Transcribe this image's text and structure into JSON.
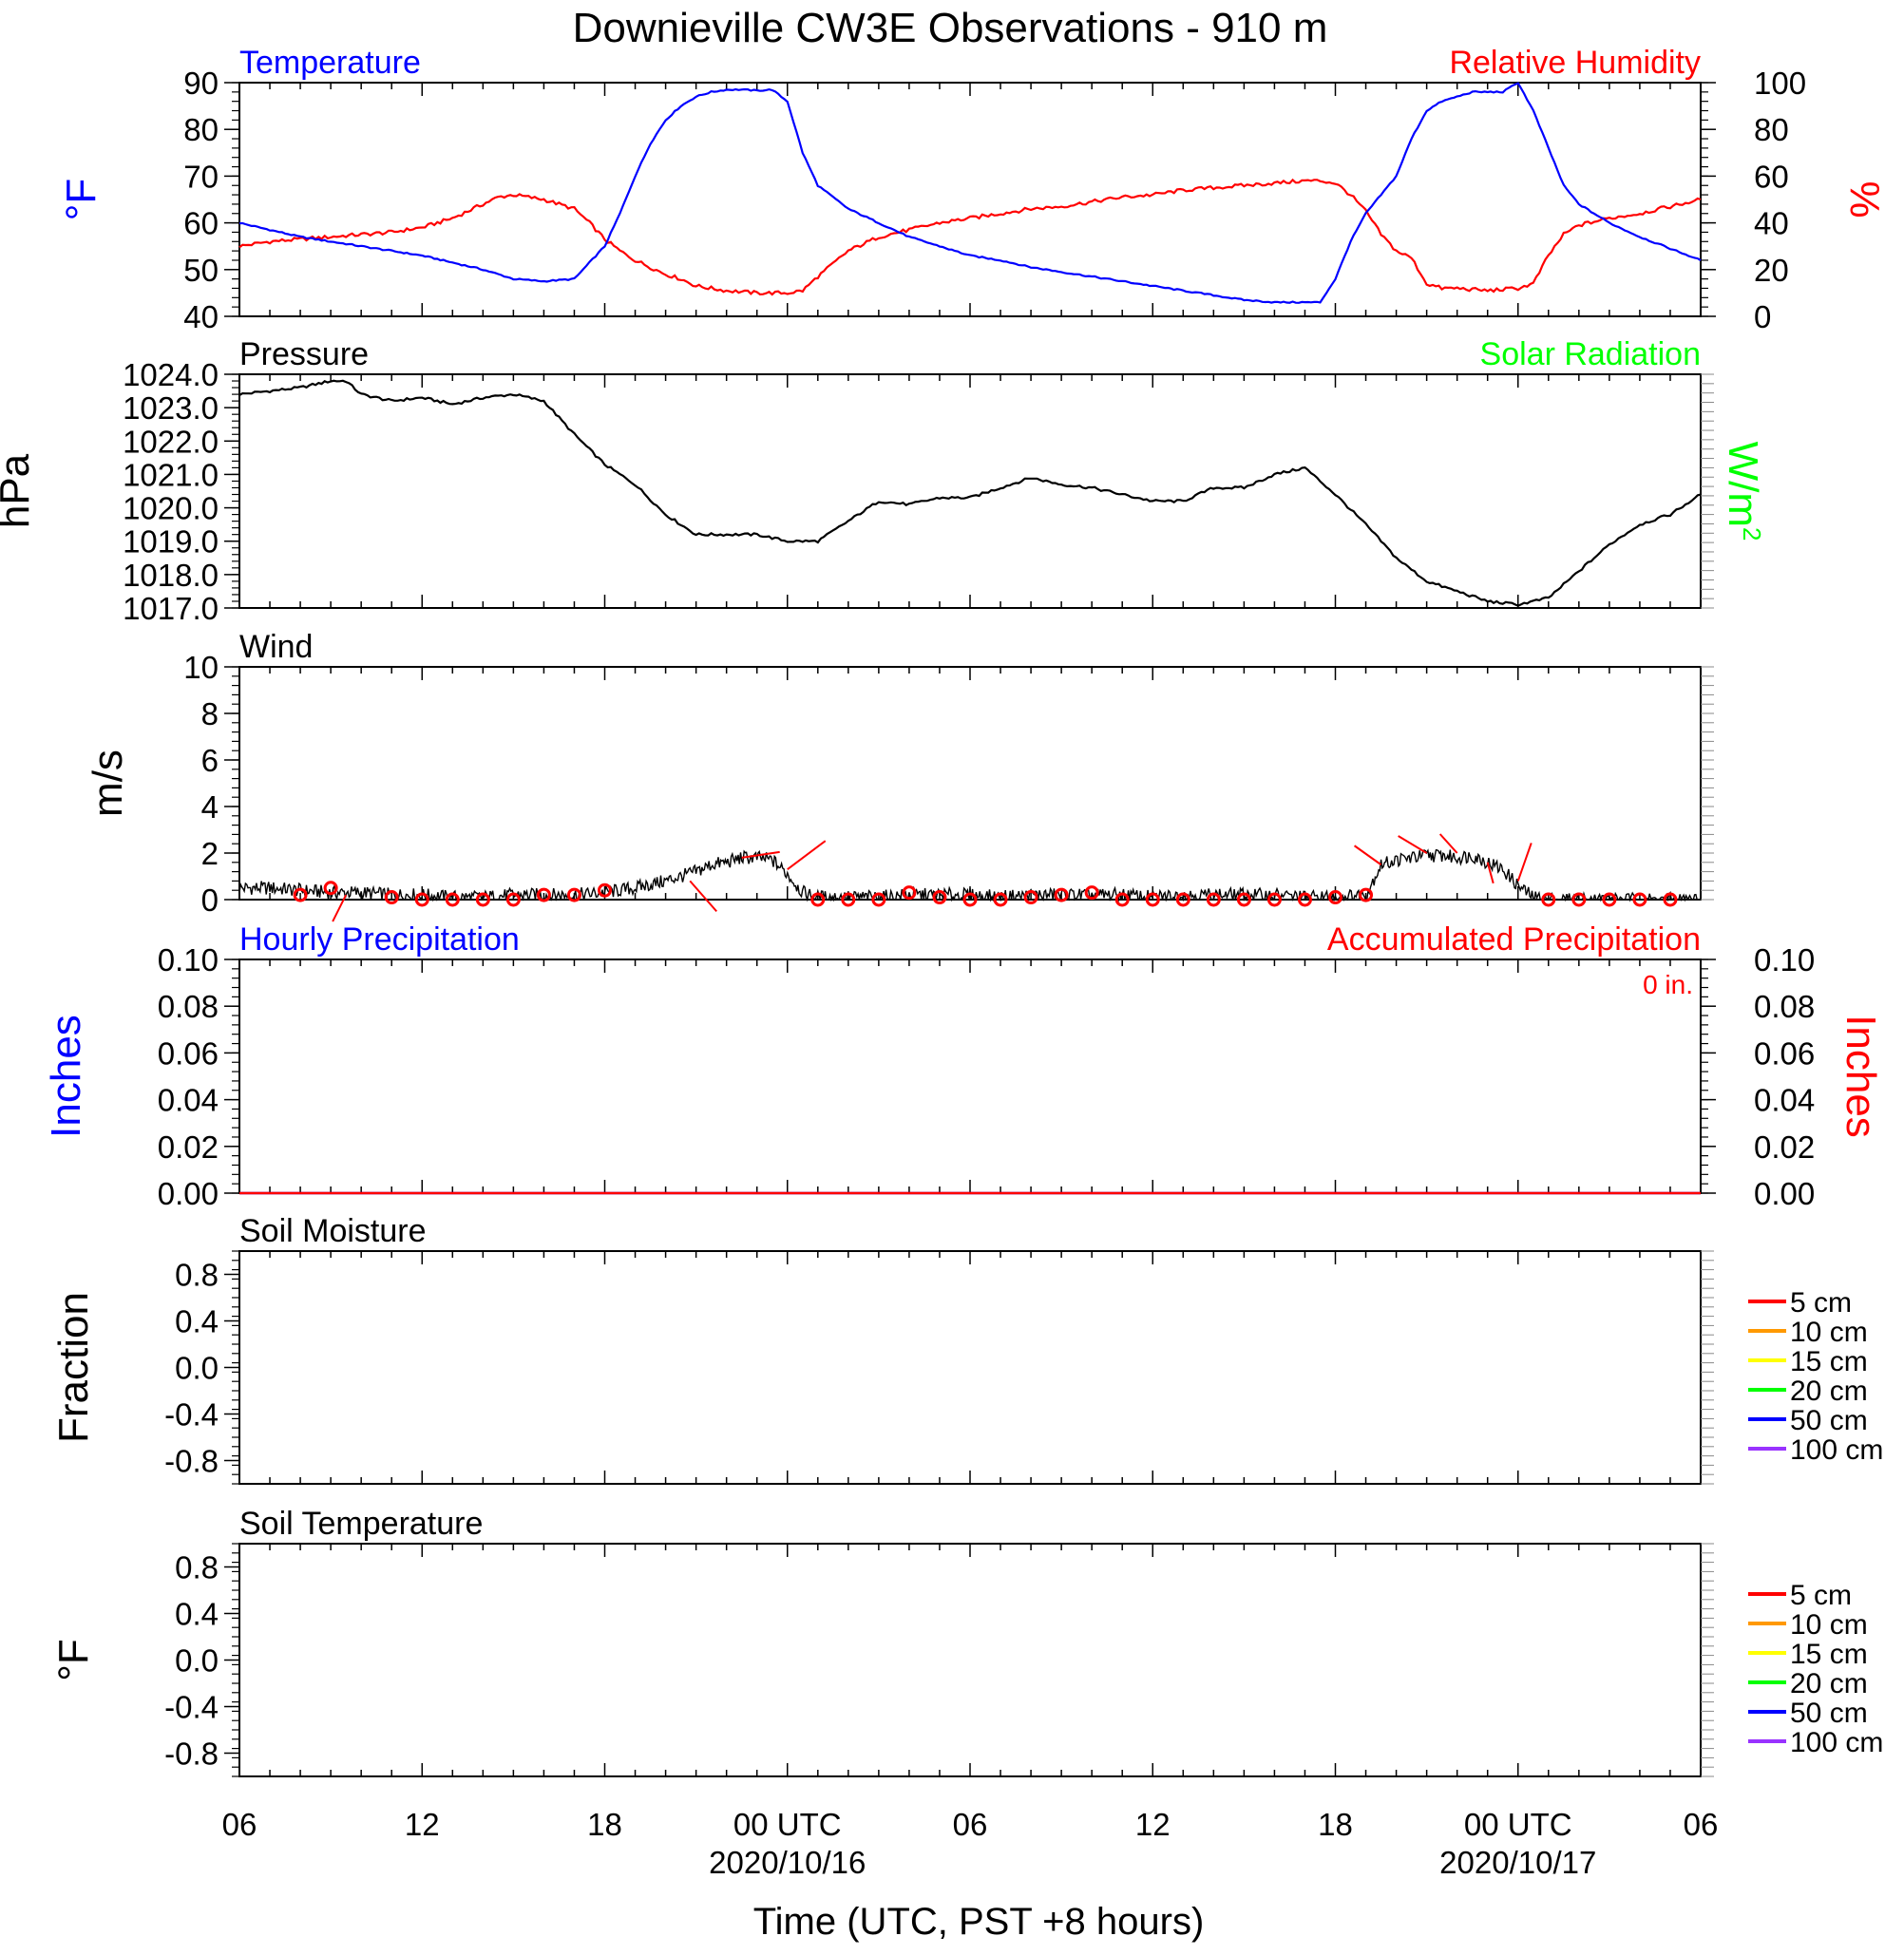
{
  "figure": {
    "title": "Downieville CW3E Observations - 910 m",
    "xlabel": "Time (UTC, PST +8 hours)",
    "x_ticks": [
      {
        "hour": 0,
        "label": "06",
        "date": ""
      },
      {
        "hour": 6,
        "label": "12",
        "date": ""
      },
      {
        "hour": 12,
        "label": "18",
        "date": ""
      },
      {
        "hour": 18,
        "label": "00 UTC",
        "date": "2020/10/16"
      },
      {
        "hour": 24,
        "label": "06",
        "date": ""
      },
      {
        "hour": 30,
        "label": "12",
        "date": ""
      },
      {
        "hour": 36,
        "label": "18",
        "date": ""
      },
      {
        "hour": 42,
        "label": "00 UTC",
        "date": "2020/10/17"
      },
      {
        "hour": 48,
        "label": "06",
        "date": ""
      }
    ],
    "colors": {
      "temperature": "#0000ff",
      "humidity": "#ff0000",
      "pressure": "#000000",
      "solar": "#00ff00",
      "wind": "#000000",
      "wind_barb": "#ff0000",
      "precip_hourly": "#0000ff",
      "precip_accum": "#ff0000"
    }
  },
  "chart_data": [
    {
      "id": "temp_rh",
      "type": "line",
      "title_left": "Temperature",
      "title_right": "Relative Humidity",
      "ylabel_left": "°F",
      "ylabel_right": "%",
      "ylim_left": [
        40,
        90
      ],
      "ylim_right": [
        0,
        100
      ],
      "yticks_left": [
        "40",
        "50",
        "60",
        "70",
        "80",
        "90"
      ],
      "yticks_right": [
        "0",
        "20",
        "40",
        "60",
        "80",
        "100"
      ],
      "series": [
        {
          "name": "Temperature",
          "axis": "left",
          "x": [
            0,
            1,
            2,
            3,
            4,
            5,
            6,
            7,
            8,
            8.5,
            9,
            10,
            11,
            12,
            12.5,
            13,
            13.5,
            14,
            14.5,
            15,
            15.5,
            16,
            16.5,
            17,
            17.5,
            18,
            18.5,
            19,
            20,
            21,
            22,
            23,
            24,
            25,
            26,
            27,
            28,
            29,
            30,
            31,
            32,
            33,
            34,
            35,
            35.5,
            36,
            36.5,
            37,
            37.5,
            38,
            38.5,
            39,
            39.5,
            40,
            40.5,
            41,
            41.5,
            42,
            42.5,
            43,
            43.5,
            44,
            45,
            46,
            47,
            48
          ],
          "y": [
            60,
            58.5,
            57,
            56,
            55,
            54,
            53,
            51.5,
            50,
            49,
            48,
            47.5,
            48,
            55,
            62,
            70,
            77,
            82,
            85,
            87,
            88,
            88.5,
            88.5,
            88.3,
            88.5,
            86,
            75,
            68,
            63,
            60,
            57,
            55,
            53,
            52,
            50.5,
            49.5,
            48.5,
            47.5,
            46.5,
            45.5,
            44.5,
            43.5,
            43,
            43,
            43,
            48,
            56,
            62,
            66,
            70,
            78,
            84,
            86,
            87,
            88,
            88,
            88,
            90,
            84,
            76,
            68,
            64,
            60,
            57,
            54.5,
            52
          ]
        },
        {
          "name": "Relative Humidity",
          "axis": "right",
          "x": [
            0,
            1,
            2,
            3,
            4,
            5,
            6,
            7,
            7.5,
            8,
            8.5,
            9,
            9.5,
            10,
            10.5,
            11,
            11.5,
            12,
            12.5,
            13,
            13.5,
            14,
            14.5,
            15,
            16,
            17,
            17.5,
            18,
            18.5,
            19,
            20,
            21,
            22,
            23,
            24,
            25,
            26,
            27,
            28,
            29,
            30,
            31,
            32,
            33,
            34,
            35,
            35.5,
            36,
            36.5,
            37,
            37.5,
            38,
            38.5,
            39,
            39.5,
            40,
            41,
            42,
            42.5,
            43,
            43.5,
            44,
            45,
            46,
            47,
            48
          ],
          "y": [
            30,
            32,
            33,
            34,
            35,
            36,
            38,
            42,
            45,
            48,
            51,
            52,
            51,
            50,
            48,
            46,
            40,
            33,
            28,
            24,
            21,
            18,
            16,
            13,
            11,
            10,
            10,
            10,
            11,
            17,
            28,
            34,
            37,
            40,
            42,
            44,
            46,
            47,
            49,
            51,
            52,
            54,
            55,
            56,
            57,
            58,
            58,
            57,
            52,
            45,
            35,
            28,
            25,
            14,
            12,
            12,
            11,
            12,
            14,
            26,
            35,
            39,
            42,
            44,
            47,
            50
          ]
        }
      ]
    },
    {
      "id": "pressure",
      "type": "line",
      "title_left": "Pressure",
      "title_right": "Solar Radiation",
      "ylabel_left": "hPa",
      "ylabel_right": "W/m",
      "ylabel_right_sup": "2",
      "ylim_left": [
        1017.0,
        1024.0
      ],
      "yticks_left": [
        "1017.0",
        "1018.0",
        "1019.0",
        "1020.0",
        "1021.0",
        "1022.0",
        "1023.0",
        "1024.0"
      ],
      "series": [
        {
          "name": "Pressure",
          "axis": "left",
          "x": [
            0,
            1,
            2,
            3,
            3.5,
            4,
            5,
            6,
            7,
            8,
            9,
            10,
            11,
            12,
            13,
            14,
            15,
            16,
            17,
            18,
            19,
            20,
            21,
            22,
            23,
            24,
            25,
            26,
            27,
            28,
            29,
            30,
            31,
            32,
            33,
            34,
            35,
            36,
            37,
            38,
            39,
            40,
            41,
            42,
            43,
            44,
            45,
            46,
            47,
            48
          ],
          "y": [
            1023.4,
            1023.5,
            1023.6,
            1023.8,
            1023.8,
            1023.4,
            1023.2,
            1023.3,
            1023.1,
            1023.3,
            1023.4,
            1023.2,
            1022.2,
            1021.3,
            1020.7,
            1019.8,
            1019.2,
            1019.2,
            1019.2,
            1019.0,
            1019.0,
            1019.6,
            1020.2,
            1020.1,
            1020.3,
            1020.3,
            1020.6,
            1020.9,
            1020.7,
            1020.6,
            1020.4,
            1020.2,
            1020.2,
            1020.6,
            1020.6,
            1021.0,
            1021.2,
            1020.4,
            1019.5,
            1018.5,
            1017.8,
            1017.5,
            1017.2,
            1017.1,
            1017.3,
            1018.1,
            1018.9,
            1019.5,
            1019.8,
            1020.4
          ]
        }
      ]
    },
    {
      "id": "wind",
      "type": "line",
      "title_left": "Wind",
      "ylabel_left": "m/s",
      "ylim_left": [
        0,
        10
      ],
      "yticks_left": [
        "0",
        "2",
        "4",
        "6",
        "8",
        "10"
      ],
      "series": [
        {
          "name": "Wind",
          "x": [
            0,
            1,
            2,
            3,
            4,
            5,
            6,
            7,
            8,
            9,
            10,
            11,
            12,
            13,
            14,
            15,
            15.5,
            16,
            16.5,
            17,
            17.5,
            18,
            18.5,
            19,
            20,
            21,
            22,
            23,
            24,
            25,
            26,
            27,
            28,
            29,
            30,
            31,
            32,
            33,
            34,
            35,
            36,
            37,
            37.5,
            38,
            38.5,
            39,
            39.5,
            40,
            40.5,
            41,
            41.5,
            42,
            42.5,
            43,
            44,
            45,
            46,
            47,
            48
          ],
          "y": [
            0.5,
            0.5,
            0.4,
            0.3,
            0.3,
            0.2,
            0.2,
            0.1,
            0.1,
            0.2,
            0.2,
            0.2,
            0.3,
            0.5,
            0.8,
            1.2,
            1.5,
            1.6,
            1.8,
            1.8,
            1.7,
            1.1,
            0.3,
            0.1,
            0.1,
            0.1,
            0.2,
            0.2,
            0.2,
            0.1,
            0.2,
            0.2,
            0.2,
            0.2,
            0.1,
            0.2,
            0.2,
            0.2,
            0.2,
            0.1,
            0.1,
            0.2,
            1.5,
            1.7,
            1.8,
            1.9,
            1.9,
            1.8,
            1.9,
            1.6,
            1.3,
            0.6,
            0.1,
            0.0,
            0.0,
            0.0,
            0.0,
            0.0,
            0.0
          ]
        }
      ],
      "barb_markers_hours": [
        2,
        3,
        5,
        6,
        7,
        8,
        9,
        10,
        11,
        12,
        19,
        20,
        21,
        22,
        23,
        24,
        25,
        26,
        27,
        28,
        29,
        30,
        31,
        32,
        33,
        34,
        35,
        36,
        37,
        43,
        44,
        45,
        46,
        47
      ],
      "barb_marker_speeds": [
        0.2,
        0.5,
        0.1,
        0.0,
        0.0,
        0.0,
        0.0,
        0.2,
        0.2,
        0.4,
        0.0,
        0.0,
        0.0,
        0.3,
        0.1,
        0.0,
        0.0,
        0.1,
        0.2,
        0.3,
        0.0,
        0.0,
        0.0,
        0.0,
        0.0,
        0.0,
        0.0,
        0.1,
        0.2,
        0.0,
        0.0,
        0.0,
        0.0,
        0.0
      ]
    },
    {
      "id": "precip",
      "type": "line",
      "title_left": "Hourly Precipitation",
      "title_right": "Accumulated Precipitation",
      "annotation": "0 in.",
      "ylabel_left": "Inches",
      "ylabel_right": "Inches",
      "ylim_left": [
        0.0,
        0.1
      ],
      "ylim_right": [
        0.0,
        0.1
      ],
      "yticks_left": [
        "0.00",
        "0.02",
        "0.04",
        "0.06",
        "0.08",
        "0.10"
      ],
      "yticks_right": [
        "0.00",
        "0.02",
        "0.04",
        "0.06",
        "0.08",
        "0.10"
      ],
      "series": [
        {
          "name": "Hourly Precipitation",
          "axis": "left",
          "x": [
            0,
            48
          ],
          "y": [
            0.0,
            0.0
          ]
        },
        {
          "name": "Accumulated Precipitation",
          "axis": "right",
          "x": [
            0,
            48
          ],
          "y": [
            0.0,
            0.0
          ]
        }
      ]
    },
    {
      "id": "soil_moisture",
      "type": "line",
      "title_left": "Soil Moisture",
      "ylabel_left": "Fraction",
      "ylim_left": [
        -1.0,
        1.0
      ],
      "yticks_left": [
        "-0.8",
        "-0.4",
        "0.0",
        "0.4",
        "0.8"
      ],
      "legend": [
        {
          "label": "5 cm",
          "color": "#ff0000"
        },
        {
          "label": "10 cm",
          "color": "#ff9900"
        },
        {
          "label": "15 cm",
          "color": "#ffff00"
        },
        {
          "label": "20 cm",
          "color": "#00ff00"
        },
        {
          "label": "50 cm",
          "color": "#0000ff"
        },
        {
          "label": "100 cm",
          "color": "#9933ff"
        }
      ]
    },
    {
      "id": "soil_temp",
      "type": "line",
      "title_left": "Soil Temperature",
      "ylabel_left": "°F",
      "ylim_left": [
        -1.0,
        1.0
      ],
      "yticks_left": [
        "-0.8",
        "-0.4",
        "0.0",
        "0.4",
        "0.8"
      ],
      "legend": [
        {
          "label": "5 cm",
          "color": "#ff0000"
        },
        {
          "label": "10 cm",
          "color": "#ff9900"
        },
        {
          "label": "15 cm",
          "color": "#ffff00"
        },
        {
          "label": "20 cm",
          "color": "#00ff00"
        },
        {
          "label": "50 cm",
          "color": "#0000ff"
        },
        {
          "label": "100 cm",
          "color": "#9933ff"
        }
      ]
    }
  ]
}
